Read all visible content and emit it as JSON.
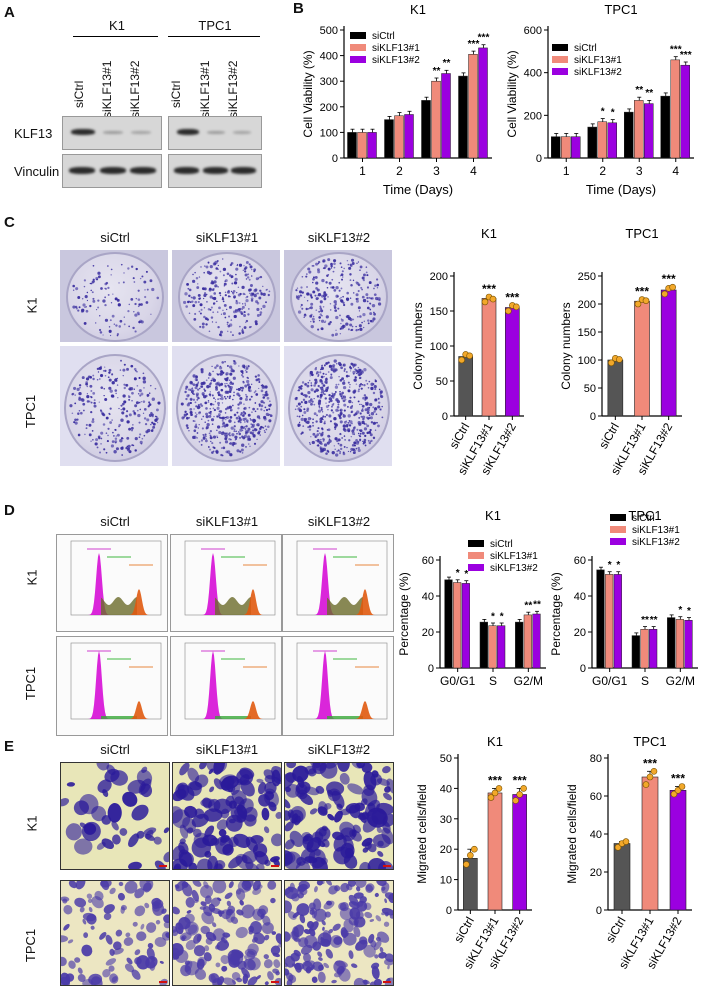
{
  "panels": {
    "A": "A",
    "B": "B",
    "C": "C",
    "D": "D",
    "E": "E"
  },
  "colors": {
    "siCtrl_bar": "#000000",
    "siKLF13_1_bar": "#f08a7a",
    "siKLF13_2_bar": "#9b00e0",
    "colony_ctrl": "#555555",
    "point": "#f2a82a",
    "stain": "#3b2fa0"
  },
  "panelA": {
    "groups": [
      "K1",
      "TPC1"
    ],
    "lanes": [
      "siCtrl",
      "siKLF13#1",
      "siKLF13#2"
    ],
    "proteins": [
      "KLF13",
      "Vinculin"
    ]
  },
  "panelC": {
    "columns": [
      "siCtrl",
      "siKLF13#1",
      "siKLF13#2"
    ],
    "rows": [
      "K1",
      "TPC1"
    ]
  },
  "panelD": {
    "columns": [
      "siCtrl",
      "siKLF13#1",
      "siKLF13#2"
    ],
    "rows": [
      "K1",
      "TPC1"
    ]
  },
  "panelE": {
    "columns": [
      "siCtrl",
      "siKLF13#1",
      "siKLF13#2"
    ],
    "rows": [
      "K1",
      "TPC1"
    ]
  },
  "chart_data": [
    {
      "id": "B-K1",
      "type": "bar",
      "title": "K1",
      "xlabel": "Time (Days)",
      "ylabel": "Cell Viability (%)",
      "categories": [
        "1",
        "2",
        "3",
        "4"
      ],
      "ylim": [
        0,
        500
      ],
      "yticks": [
        0,
        100,
        200,
        300,
        400,
        500
      ],
      "legend": "top-left",
      "series": [
        {
          "name": "siCtrl",
          "values": [
            100,
            150,
            225,
            320
          ]
        },
        {
          "name": "siKLF13#1",
          "values": [
            100,
            165,
            300,
            405
          ]
        },
        {
          "name": "siKLF13#2",
          "values": [
            100,
            170,
            330,
            430
          ]
        }
      ],
      "annotations": [
        {
          "category": "3",
          "series": 1,
          "text": "**"
        },
        {
          "category": "3",
          "series": 2,
          "text": "**"
        },
        {
          "category": "4",
          "series": 1,
          "text": "***"
        },
        {
          "category": "4",
          "series": 2,
          "text": "***"
        }
      ]
    },
    {
      "id": "B-TPC1",
      "type": "bar",
      "title": "TPC1",
      "xlabel": "Time (Days)",
      "ylabel": "Cell Viability (%)",
      "categories": [
        "1",
        "2",
        "3",
        "4"
      ],
      "ylim": [
        0,
        600
      ],
      "yticks": [
        0,
        200,
        400,
        600
      ],
      "legend": "top-left",
      "series": [
        {
          "name": "siCtrl",
          "values": [
            100,
            145,
            215,
            290
          ]
        },
        {
          "name": "siKLF13#1",
          "values": [
            100,
            170,
            270,
            460
          ]
        },
        {
          "name": "siKLF13#2",
          "values": [
            100,
            165,
            255,
            435
          ]
        }
      ],
      "annotations": [
        {
          "category": "2",
          "series": 1,
          "text": "*"
        },
        {
          "category": "2",
          "series": 2,
          "text": "*"
        },
        {
          "category": "3",
          "series": 1,
          "text": "**"
        },
        {
          "category": "3",
          "series": 2,
          "text": "**"
        },
        {
          "category": "4",
          "series": 1,
          "text": "***"
        },
        {
          "category": "4",
          "series": 2,
          "text": "***"
        }
      ]
    },
    {
      "id": "C-K1",
      "type": "bar",
      "title": "K1",
      "ylabel": "Colony numbers",
      "categories": [
        "siCtrl",
        "siKLF13#1",
        "siKLF13#2"
      ],
      "values": [
        85,
        168,
        155
      ],
      "ylim": [
        0,
        200
      ],
      "yticks": [
        0,
        50,
        100,
        150,
        200
      ],
      "points": [
        [
          80,
          88,
          86
        ],
        [
          163,
          170,
          167
        ],
        [
          150,
          158,
          156
        ]
      ],
      "annotations": [
        {
          "category": "siKLF13#1",
          "text": "***"
        },
        {
          "category": "siKLF13#2",
          "text": "***"
        }
      ]
    },
    {
      "id": "C-TPC1",
      "type": "bar",
      "title": "TPC1",
      "ylabel": "Colony numbers",
      "categories": [
        "siCtrl",
        "siKLF13#1",
        "siKLF13#2"
      ],
      "values": [
        100,
        205,
        225
      ],
      "ylim": [
        0,
        250
      ],
      "yticks": [
        0,
        50,
        100,
        150,
        200,
        250
      ],
      "points": [
        [
          95,
          103,
          101
        ],
        [
          200,
          208,
          206
        ],
        [
          218,
          228,
          230
        ]
      ],
      "annotations": [
        {
          "category": "siKLF13#1",
          "text": "***"
        },
        {
          "category": "siKLF13#2",
          "text": "***"
        }
      ]
    },
    {
      "id": "D-K1",
      "type": "bar",
      "title": "K1",
      "ylabel": "Percentage (%)",
      "categories": [
        "G0/G1",
        "S",
        "G2/M"
      ],
      "ylim": [
        0,
        60
      ],
      "yticks": [
        0,
        20,
        40,
        60
      ],
      "legend": "top-right",
      "series": [
        {
          "name": "siCtrl",
          "values": [
            49,
            25.5,
            25.5
          ]
        },
        {
          "name": "siKLF13#1",
          "values": [
            47.5,
            23.5,
            29.5
          ]
        },
        {
          "name": "siKLF13#2",
          "values": [
            47,
            23.5,
            30
          ]
        }
      ],
      "annotations": [
        {
          "category": "G0/G1",
          "series": 1,
          "text": "*"
        },
        {
          "category": "G0/G1",
          "series": 2,
          "text": "*"
        },
        {
          "category": "S",
          "series": 1,
          "text": "*"
        },
        {
          "category": "S",
          "series": 2,
          "text": "*"
        },
        {
          "category": "G2/M",
          "series": 1,
          "text": "**"
        },
        {
          "category": "G2/M",
          "series": 2,
          "text": "**"
        }
      ]
    },
    {
      "id": "D-TPC1",
      "type": "bar",
      "title": "TPC1",
      "ylabel": "Percentage (%)",
      "categories": [
        "G0/G1",
        "S",
        "G2/M"
      ],
      "ylim": [
        0,
        60
      ],
      "yticks": [
        0,
        20,
        40,
        60
      ],
      "legend": "top-right",
      "series": [
        {
          "name": "siCtrl",
          "values": [
            54.5,
            18,
            28
          ]
        },
        {
          "name": "siKLF13#1",
          "values": [
            52,
            21.5,
            27
          ]
        },
        {
          "name": "siKLF13#2",
          "values": [
            52,
            21.5,
            26.5
          ]
        }
      ],
      "annotations": [
        {
          "category": "G0/G1",
          "series": 1,
          "text": "*"
        },
        {
          "category": "G0/G1",
          "series": 2,
          "text": "*"
        },
        {
          "category": "S",
          "series": 1,
          "text": "**"
        },
        {
          "category": "S",
          "series": 2,
          "text": "**"
        },
        {
          "category": "G2/M",
          "series": 1,
          "text": "*"
        },
        {
          "category": "G2/M",
          "series": 2,
          "text": "*"
        }
      ]
    },
    {
      "id": "E-K1",
      "type": "bar",
      "title": "K1",
      "ylabel": "Migrated cells/field",
      "categories": [
        "siCtrl",
        "siKLF13#1",
        "siKLF13#2"
      ],
      "values": [
        17,
        38.5,
        38
      ],
      "ylim": [
        0,
        50
      ],
      "yticks": [
        0,
        10,
        20,
        30,
        40,
        50
      ],
      "points": [
        [
          15,
          18,
          20
        ],
        [
          37,
          38.5,
          40
        ],
        [
          36,
          38,
          40
        ]
      ],
      "annotations": [
        {
          "category": "siKLF13#1",
          "text": "***"
        },
        {
          "category": "siKLF13#2",
          "text": "***"
        }
      ]
    },
    {
      "id": "E-TPC1",
      "type": "bar",
      "title": "TPC1",
      "ylabel": "Migrated cells/field",
      "categories": [
        "siCtrl",
        "siKLF13#1",
        "siKLF13#2"
      ],
      "values": [
        35,
        70,
        63
      ],
      "ylim": [
        0,
        80
      ],
      "yticks": [
        0,
        20,
        40,
        60,
        80
      ],
      "points": [
        [
          33,
          35,
          36
        ],
        [
          66,
          70,
          73
        ],
        [
          61,
          63,
          65
        ]
      ],
      "annotations": [
        {
          "category": "siKLF13#1",
          "text": "***"
        },
        {
          "category": "siKLF13#2",
          "text": "***"
        }
      ]
    }
  ]
}
